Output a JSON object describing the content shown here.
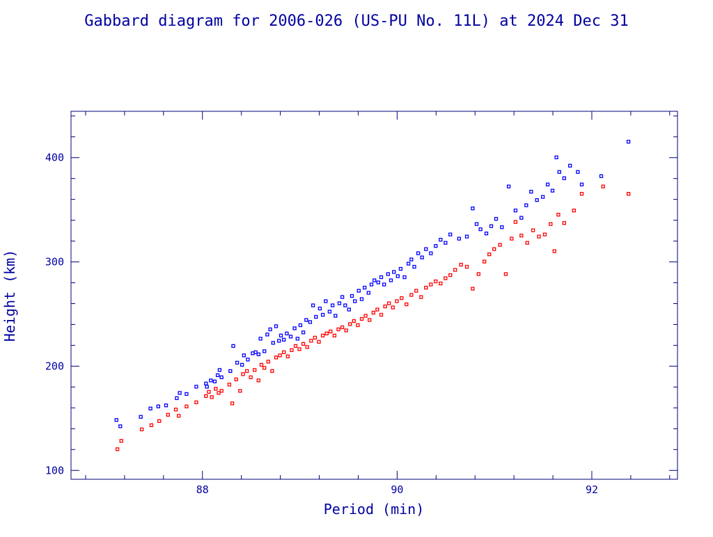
{
  "chart_data": {
    "type": "scatter",
    "title": "Gabbard diagram for 2006-026 (US-PU No. 11L) at 2024 Dec 31",
    "xlabel": "Period (min)",
    "ylabel": "Height (km)",
    "xlim": [
      86.65,
      92.88
    ],
    "ylim": [
      91.5,
      444.5
    ],
    "x_major_ticks": [
      88,
      90,
      92
    ],
    "x_minor_step": 0.4,
    "y_major_ticks": [
      100,
      200,
      300,
      400
    ],
    "y_minor_step": 20,
    "grid": false,
    "legend": "none",
    "colors": {
      "frame": "#00007a",
      "text": "#0000a0",
      "apogee": "#0000ff",
      "perigee": "#ff0000"
    },
    "series": [
      {
        "role": "apogee",
        "points": [
          [
            87.12,
            148
          ],
          [
            87.16,
            142
          ],
          [
            87.37,
            151
          ],
          [
            87.47,
            159
          ],
          [
            87.55,
            161
          ],
          [
            87.63,
            162
          ],
          [
            87.74,
            169
          ],
          [
            87.77,
            174
          ],
          [
            87.84,
            173
          ],
          [
            87.94,
            180
          ],
          [
            88.04,
            183
          ],
          [
            88.05,
            180
          ],
          [
            88.09,
            186
          ],
          [
            88.13,
            185
          ],
          [
            88.16,
            191
          ],
          [
            88.18,
            196
          ],
          [
            88.2,
            189
          ],
          [
            88.29,
            195
          ],
          [
            88.32,
            219
          ],
          [
            88.36,
            203
          ],
          [
            88.41,
            201
          ],
          [
            88.43,
            210
          ],
          [
            88.47,
            206
          ],
          [
            88.52,
            212
          ],
          [
            88.55,
            213
          ],
          [
            88.58,
            211
          ],
          [
            88.6,
            226
          ],
          [
            88.64,
            214
          ],
          [
            88.67,
            230
          ],
          [
            88.7,
            235
          ],
          [
            88.73,
            222
          ],
          [
            88.76,
            238
          ],
          [
            88.79,
            224
          ],
          [
            88.81,
            229
          ],
          [
            88.84,
            225
          ],
          [
            88.87,
            231
          ],
          [
            88.91,
            228
          ],
          [
            88.95,
            236
          ],
          [
            88.98,
            226
          ],
          [
            89.01,
            239
          ],
          [
            89.04,
            232
          ],
          [
            89.07,
            244
          ],
          [
            89.11,
            242
          ],
          [
            89.14,
            258
          ],
          [
            89.17,
            247
          ],
          [
            89.21,
            255
          ],
          [
            89.24,
            249
          ],
          [
            89.27,
            262
          ],
          [
            89.31,
            252
          ],
          [
            89.34,
            258
          ],
          [
            89.37,
            248
          ],
          [
            89.41,
            260
          ],
          [
            89.44,
            266
          ],
          [
            89.47,
            258
          ],
          [
            89.51,
            254
          ],
          [
            89.54,
            267
          ],
          [
            89.57,
            262
          ],
          [
            89.61,
            272
          ],
          [
            89.64,
            264
          ],
          [
            89.67,
            275
          ],
          [
            89.71,
            270
          ],
          [
            89.74,
            278
          ],
          [
            89.77,
            282
          ],
          [
            89.81,
            280
          ],
          [
            89.84,
            285
          ],
          [
            89.87,
            278
          ],
          [
            89.91,
            288
          ],
          [
            89.94,
            282
          ],
          [
            89.97,
            290
          ],
          [
            90.01,
            286
          ],
          [
            90.04,
            293
          ],
          [
            90.08,
            285
          ],
          [
            90.12,
            298
          ],
          [
            90.15,
            302
          ],
          [
            90.18,
            295
          ],
          [
            90.22,
            308
          ],
          [
            90.26,
            304
          ],
          [
            90.3,
            312
          ],
          [
            90.35,
            308
          ],
          [
            90.4,
            315
          ],
          [
            90.45,
            321
          ],
          [
            90.5,
            318
          ],
          [
            90.55,
            326
          ],
          [
            90.64,
            322
          ],
          [
            90.72,
            324
          ],
          [
            90.78,
            351
          ],
          [
            90.82,
            336
          ],
          [
            90.86,
            331
          ],
          [
            90.92,
            327
          ],
          [
            90.97,
            334
          ],
          [
            91.02,
            341
          ],
          [
            91.08,
            333
          ],
          [
            91.15,
            372
          ],
          [
            91.22,
            349
          ],
          [
            91.28,
            342
          ],
          [
            91.33,
            354
          ],
          [
            91.38,
            367
          ],
          [
            91.44,
            359
          ],
          [
            91.5,
            362
          ],
          [
            91.55,
            374
          ],
          [
            91.6,
            368
          ],
          [
            91.64,
            400
          ],
          [
            91.67,
            386
          ],
          [
            91.72,
            380
          ],
          [
            91.78,
            392
          ],
          [
            91.86,
            386
          ],
          [
            91.9,
            374
          ],
          [
            92.1,
            382
          ],
          [
            92.38,
            415
          ]
        ]
      },
      {
        "role": "perigee",
        "points": [
          [
            87.13,
            120
          ],
          [
            87.17,
            128
          ],
          [
            87.38,
            139
          ],
          [
            87.48,
            143
          ],
          [
            87.56,
            147
          ],
          [
            87.65,
            153
          ],
          [
            87.73,
            158
          ],
          [
            87.76,
            152
          ],
          [
            87.84,
            161
          ],
          [
            87.94,
            165
          ],
          [
            88.04,
            171
          ],
          [
            88.07,
            175
          ],
          [
            88.1,
            170
          ],
          [
            88.14,
            178
          ],
          [
            88.17,
            174
          ],
          [
            88.2,
            176
          ],
          [
            88.28,
            182
          ],
          [
            88.31,
            164
          ],
          [
            88.35,
            187
          ],
          [
            88.39,
            176
          ],
          [
            88.42,
            192
          ],
          [
            88.46,
            195
          ],
          [
            88.5,
            189
          ],
          [
            88.54,
            196
          ],
          [
            88.58,
            186
          ],
          [
            88.61,
            201
          ],
          [
            88.64,
            198
          ],
          [
            88.68,
            204
          ],
          [
            88.72,
            195
          ],
          [
            88.76,
            208
          ],
          [
            88.8,
            210
          ],
          [
            88.84,
            213
          ],
          [
            88.88,
            209
          ],
          [
            88.92,
            215
          ],
          [
            88.96,
            219
          ],
          [
            89.0,
            216
          ],
          [
            89.04,
            221
          ],
          [
            89.08,
            218
          ],
          [
            89.12,
            224
          ],
          [
            89.16,
            227
          ],
          [
            89.2,
            223
          ],
          [
            89.24,
            229
          ],
          [
            89.28,
            231
          ],
          [
            89.32,
            233
          ],
          [
            89.36,
            229
          ],
          [
            89.4,
            235
          ],
          [
            89.44,
            237
          ],
          [
            89.48,
            234
          ],
          [
            89.52,
            240
          ],
          [
            89.56,
            243
          ],
          [
            89.6,
            239
          ],
          [
            89.64,
            245
          ],
          [
            89.68,
            248
          ],
          [
            89.72,
            244
          ],
          [
            89.76,
            251
          ],
          [
            89.8,
            254
          ],
          [
            89.84,
            249
          ],
          [
            89.88,
            257
          ],
          [
            89.92,
            260
          ],
          [
            89.96,
            256
          ],
          [
            90.0,
            262
          ],
          [
            90.05,
            265
          ],
          [
            90.1,
            259
          ],
          [
            90.15,
            268
          ],
          [
            90.2,
            272
          ],
          [
            90.25,
            266
          ],
          [
            90.3,
            275
          ],
          [
            90.35,
            278
          ],
          [
            90.4,
            281
          ],
          [
            90.45,
            279
          ],
          [
            90.5,
            284
          ],
          [
            90.55,
            287
          ],
          [
            90.6,
            292
          ],
          [
            90.66,
            297
          ],
          [
            90.72,
            295
          ],
          [
            90.78,
            274
          ],
          [
            90.84,
            288
          ],
          [
            90.9,
            300
          ],
          [
            90.95,
            307
          ],
          [
            91.0,
            312
          ],
          [
            91.06,
            316
          ],
          [
            91.12,
            288
          ],
          [
            91.18,
            322
          ],
          [
            91.22,
            338
          ],
          [
            91.28,
            325
          ],
          [
            91.34,
            318
          ],
          [
            91.4,
            330
          ],
          [
            91.46,
            324
          ],
          [
            91.52,
            326
          ],
          [
            91.58,
            336
          ],
          [
            91.62,
            310
          ],
          [
            91.66,
            345
          ],
          [
            91.72,
            337
          ],
          [
            91.82,
            349
          ],
          [
            91.9,
            365
          ],
          [
            92.12,
            372
          ],
          [
            92.38,
            365
          ]
        ]
      }
    ]
  }
}
